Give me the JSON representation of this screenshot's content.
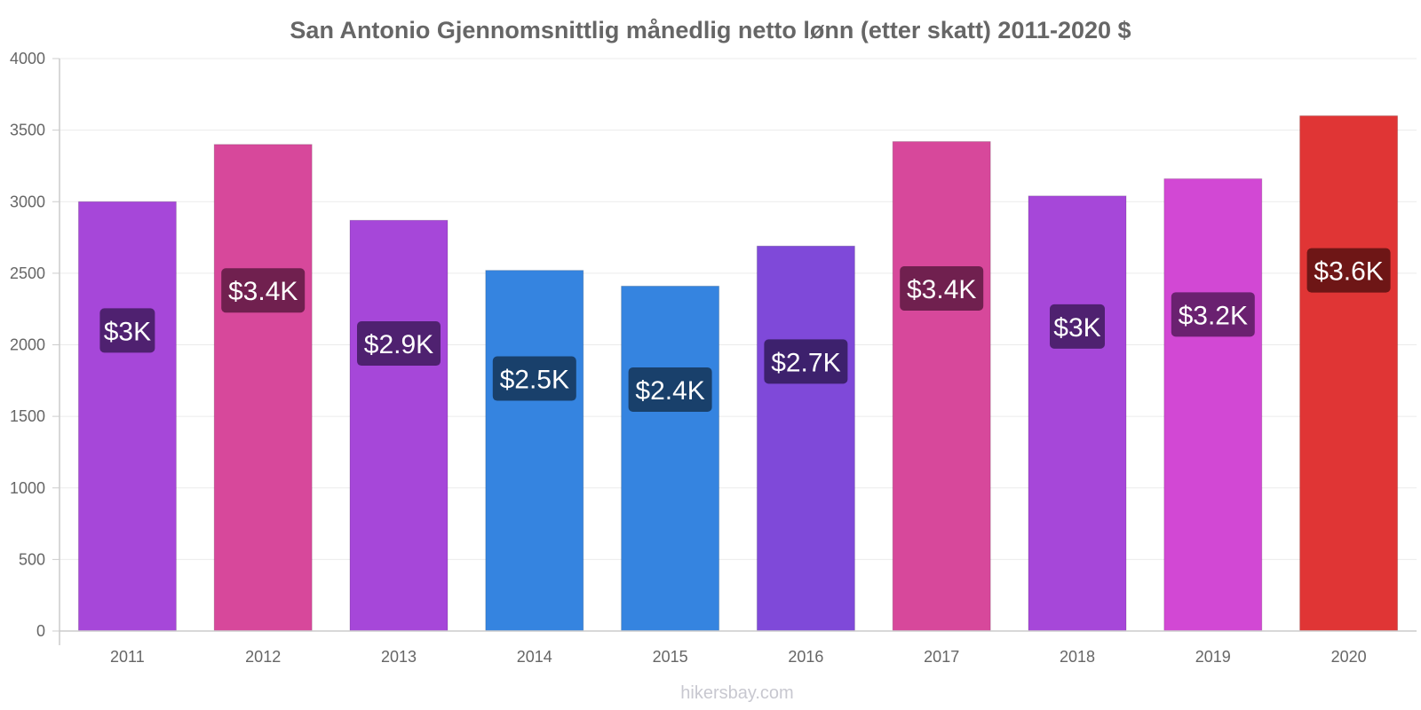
{
  "chart_data": {
    "type": "bar",
    "title": "San Antonio Gjennomsnittlig månedlig netto lønn (etter skatt) 2011-2020 $",
    "xlabel": "",
    "ylabel": "",
    "ylim": [
      0,
      4000
    ],
    "yticks": [
      0,
      500,
      1000,
      1500,
      2000,
      2500,
      3000,
      3500,
      4000
    ],
    "grid": true,
    "categories": [
      "2011",
      "2012",
      "2013",
      "2014",
      "2015",
      "2016",
      "2017",
      "2018",
      "2019",
      "2020"
    ],
    "values": [
      3000,
      3400,
      2870,
      2520,
      2410,
      2690,
      3420,
      3040,
      3160,
      3600
    ],
    "value_labels": [
      "$3K",
      "$3.4K",
      "$2.9K",
      "$2.5K",
      "$2.4K",
      "$2.7K",
      "$3.4K",
      "$3K",
      "$3.2K",
      "$3.6K"
    ],
    "bar_colors": [
      "#a647d9",
      "#d7489b",
      "#a647d9",
      "#3584e0",
      "#3584e0",
      "#7f49d9",
      "#d7489b",
      "#a647d9",
      "#d248d4",
      "#e03535"
    ],
    "label_bg_colors": [
      "#4f2170",
      "#70204f",
      "#4f2170",
      "#19406b",
      "#19406b",
      "#3d216d",
      "#70204f",
      "#4f2170",
      "#6a2170",
      "#6e1616"
    ]
  },
  "footer": {
    "credit": "hikersbay.com"
  }
}
